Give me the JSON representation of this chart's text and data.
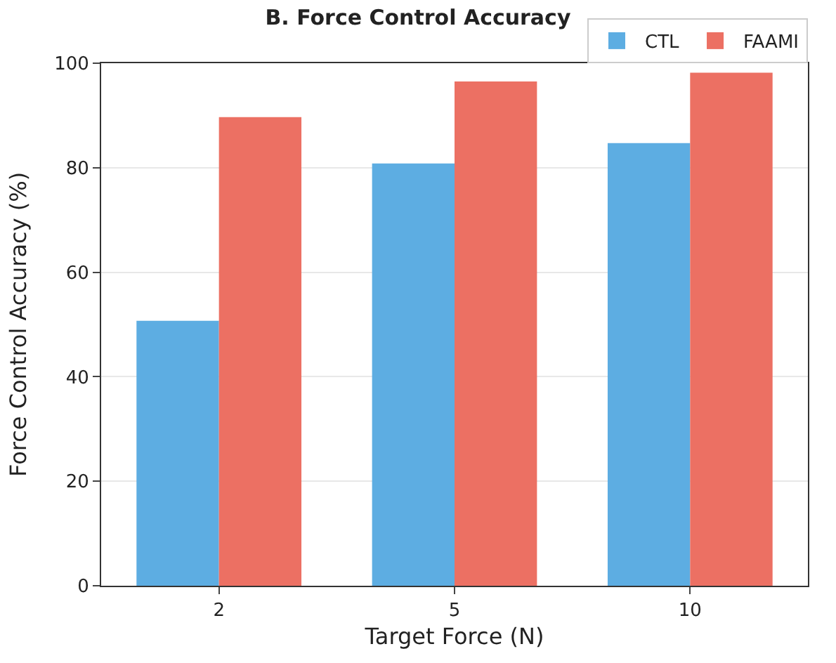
{
  "chart_data": {
    "type": "bar",
    "title": "B. Force Control Accuracy",
    "xlabel": "Target Force (N)",
    "ylabel": "Force Control Accuracy (%)",
    "categories": [
      "2",
      "5",
      "10"
    ],
    "series": [
      {
        "name": "CTL",
        "color": "#5dade2",
        "values": [
          50.7,
          80.8,
          84.7
        ]
      },
      {
        "name": "FAAMI",
        "color": "#ec7063",
        "values": [
          89.7,
          96.5,
          98.2
        ]
      }
    ],
    "ylim": [
      0,
      100
    ],
    "yticks": [
      0,
      20,
      40,
      60,
      80,
      100
    ],
    "grid": "y",
    "legend": "top right"
  }
}
